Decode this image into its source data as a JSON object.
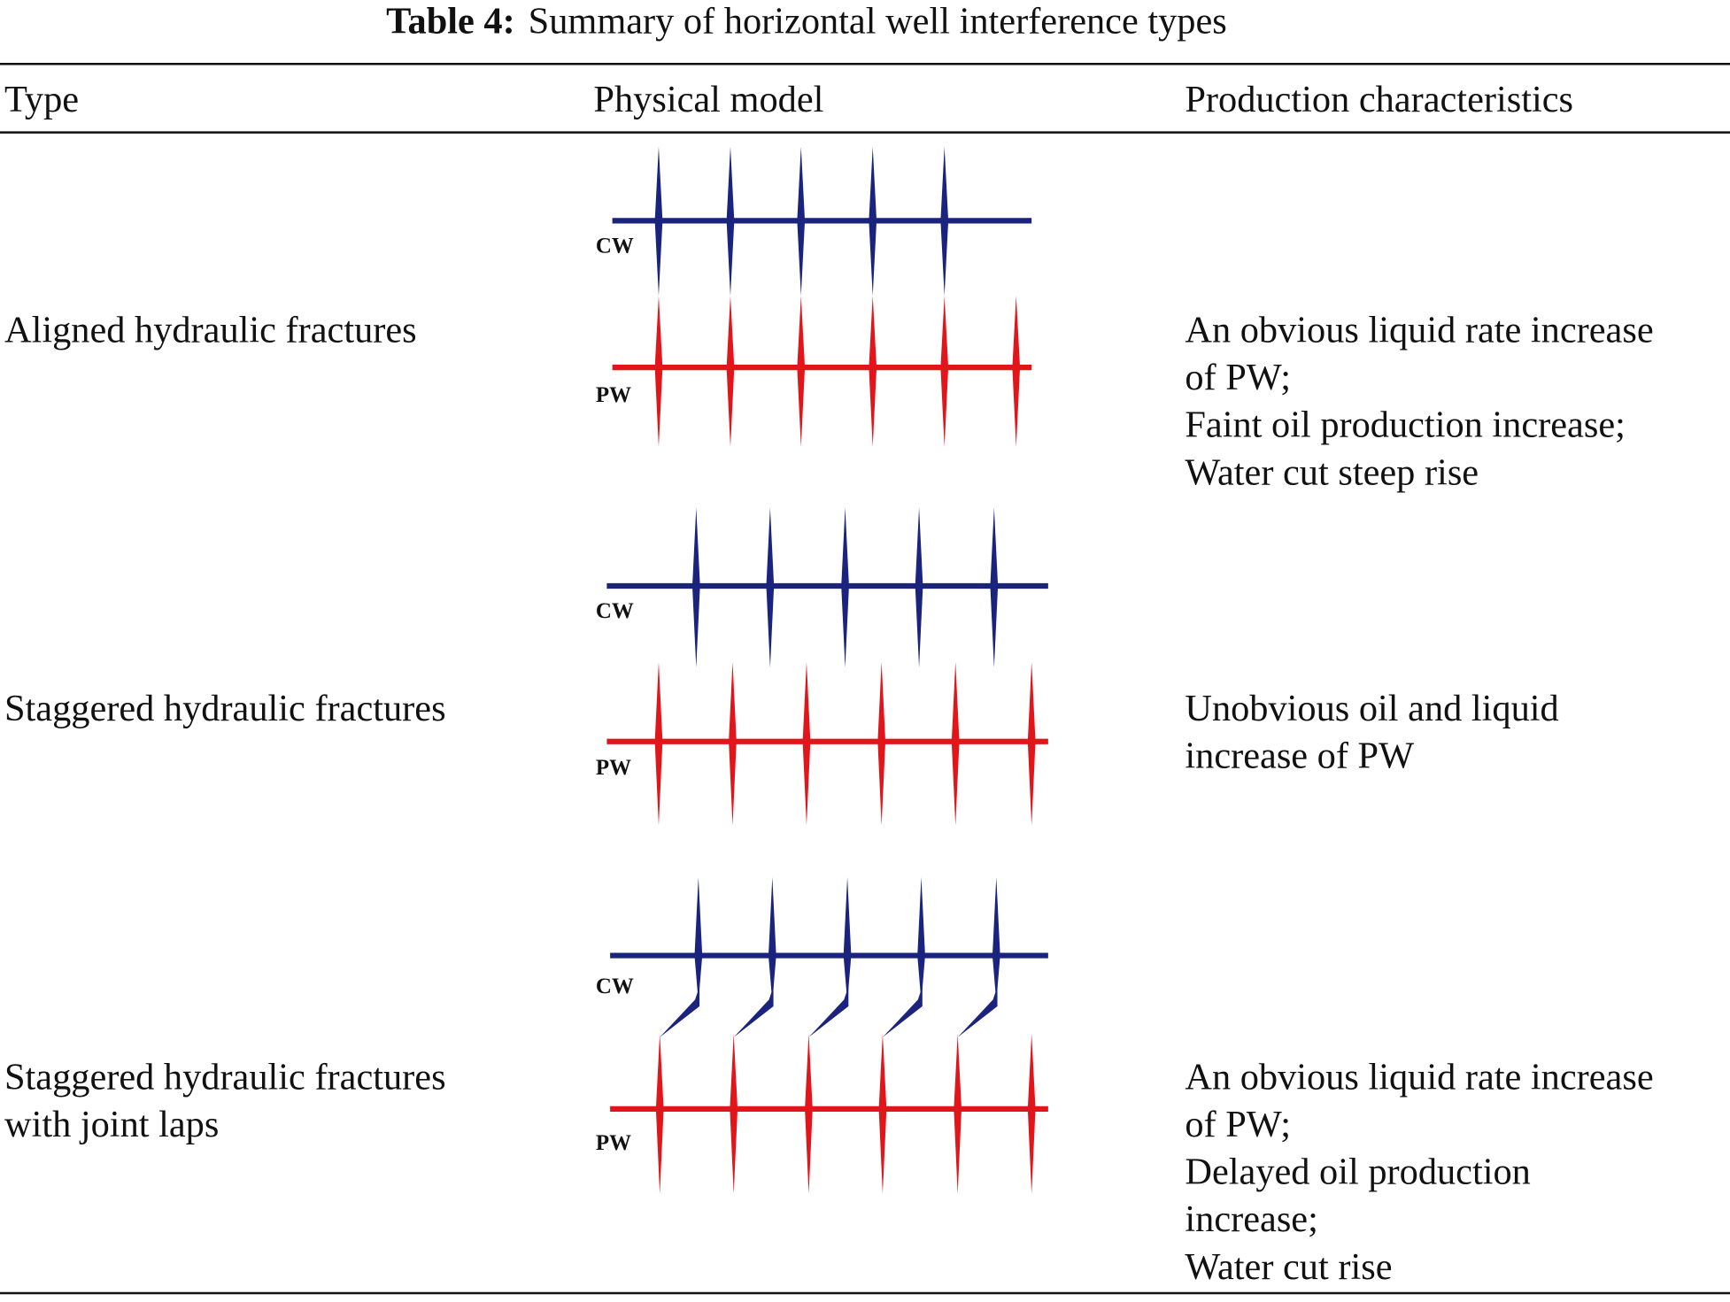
{
  "caption": {
    "label": "Table 4:",
    "text": "Summary of horizontal well interference types"
  },
  "table": {
    "header": [
      "Type",
      "Physical model",
      "Production characteristics"
    ],
    "rows": [
      {
        "type": [
          "Aligned hydraulic fractures"
        ],
        "model": {
          "cw": "CW",
          "pw": "PW"
        },
        "characteristics": [
          "An obvious liquid rate increase",
          "of PW;",
          "Faint oil production increase;",
          "Water cut steep rise"
        ]
      },
      {
        "type": [
          "Staggered hydraulic fractures"
        ],
        "model": {
          "cw": "CW",
          "pw": "PW"
        },
        "characteristics": [
          "Unobvious oil and liquid",
          "increase of PW"
        ]
      },
      {
        "type": [
          "Staggered hydraulic fractures",
          "with joint laps"
        ],
        "model": {
          "cw": "CW",
          "pw": "PW"
        },
        "characteristics": [
          "An obvious liquid rate increase",
          "of PW;",
          "Delayed oil production",
          "increase;",
          "Water cut rise"
        ]
      }
    ]
  }
}
